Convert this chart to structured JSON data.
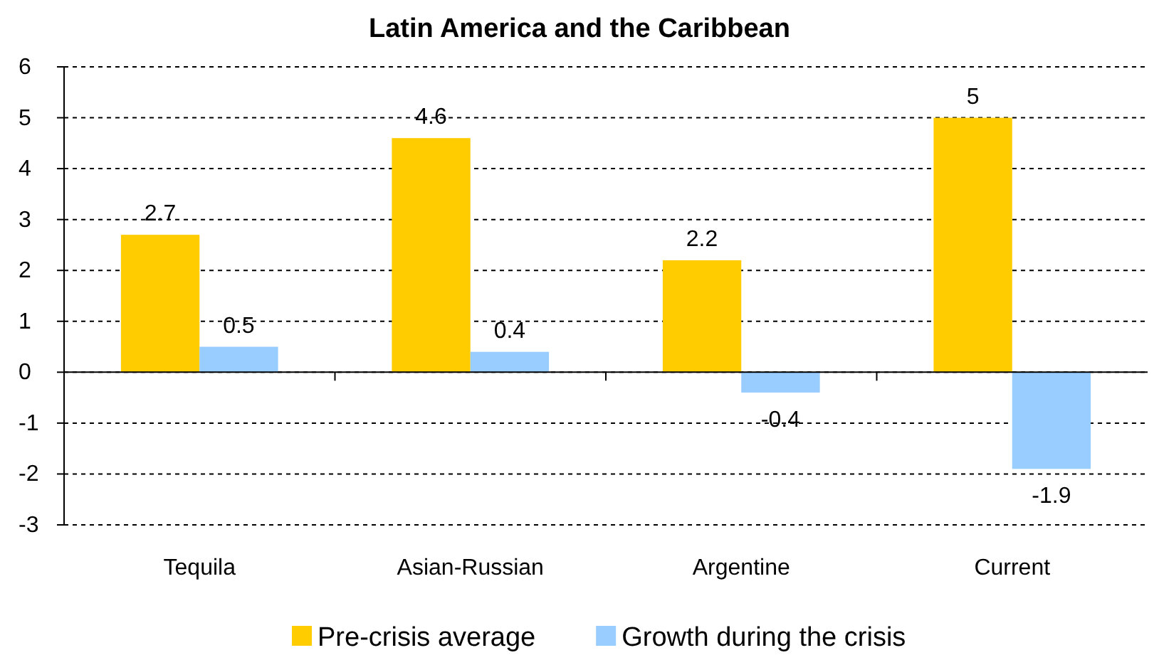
{
  "chart_data": {
    "type": "bar",
    "title": "Latin America and the Caribbean",
    "categories": [
      "Tequila",
      "Asian-Russian",
      "Argentine",
      "Current"
    ],
    "series": [
      {
        "name": "Pre-crisis average",
        "color": "#ffcc00",
        "values": [
          2.7,
          4.6,
          2.2,
          5
        ]
      },
      {
        "name": "Growth during the crisis",
        "color": "#99ccff",
        "values": [
          0.5,
          0.4,
          -0.4,
          -1.9
        ]
      }
    ],
    "ylim": [
      -3,
      6
    ],
    "yticks": [
      -3,
      -2,
      -1,
      0,
      1,
      2,
      3,
      4,
      5,
      6
    ],
    "grid": "y",
    "legend": "bottom",
    "data_labels": true
  }
}
